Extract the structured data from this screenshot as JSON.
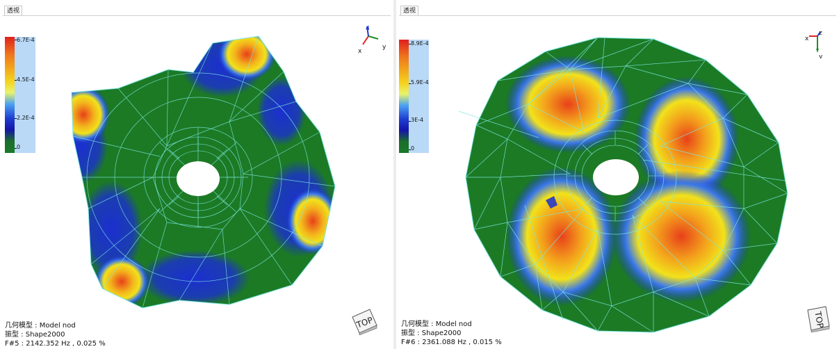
{
  "panels": [
    {
      "tab_label": "透视",
      "legend": {
        "max": "6.7E-4",
        "t2": "4.5E-4",
        "t1": "2.2E-4",
        "min": "0"
      },
      "axis": {
        "x": "x",
        "y": "y",
        "z": "z"
      },
      "view_cube": "TOP",
      "info": {
        "model": "几何模型 : Model nod",
        "shape": "振型 : Shape2000",
        "frequency": "F#5 : 2142.352 Hz , 0.025 %"
      }
    },
    {
      "tab_label": "透视",
      "legend": {
        "max": "8.9E-4",
        "t2": "5.9E-4",
        "t1": "3E-4",
        "min": "0"
      },
      "axis": {
        "x": "x",
        "y": "y",
        "z": "z"
      },
      "view_cube": "TOP",
      "info": {
        "model": "几何模型 : Model nod",
        "shape": "振型 : Shape2000",
        "frequency": "F#6 : 2361.088 Hz , 0.015 %"
      }
    }
  ],
  "colors": {
    "mesh_green": "#1c7a25",
    "low_blue": "#1b2fd0",
    "mid_yellow": "#f2e21b",
    "high_red": "#e8401a",
    "wireframe": "#7ee8e2",
    "legend_bg": "#b9d9f7"
  }
}
